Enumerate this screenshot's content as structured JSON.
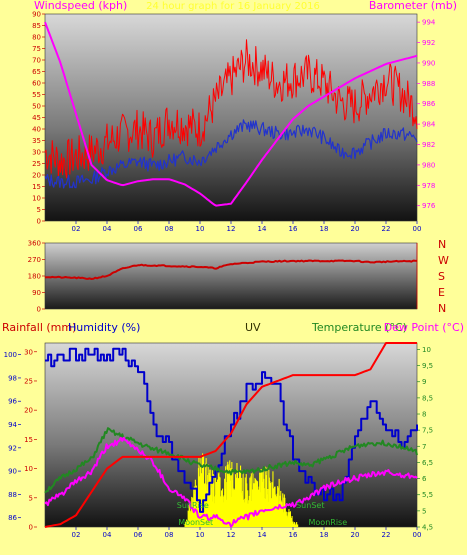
{
  "header": {
    "left_title": "Windspeed (kph)",
    "center_title": "24 hour graph for 16 January 2016",
    "right_title": "Barometer (mb)"
  },
  "direction_letters": [
    "N",
    "W",
    "S",
    "E",
    "N"
  ],
  "lower_headers": {
    "rainfall": "Rainfall (mm)",
    "humidity": "Humidity (%)",
    "uv": "UV",
    "temperature": "Temperature (°C)",
    "dewpoint": "Dew Point (°C)"
  },
  "astro_labels": {
    "sunrise": "SunRise",
    "moonset": "MoonSet",
    "sunset": "SunSet",
    "moonrise": "MoonRise"
  },
  "x_ticks": [
    "02",
    "04",
    "06",
    "08",
    "10",
    "12",
    "14",
    "16",
    "18",
    "20",
    "22",
    "00"
  ],
  "colors": {
    "background": "#ffff99",
    "label_red": "#ff00ff",
    "axis_red": "#cc0000",
    "wind_avg": "#2233cc",
    "wind_gust": "#ff0000",
    "barometer": "#ff00ff",
    "direction": "#cc0000",
    "humidity": "#0000cc",
    "temperature": "#228822",
    "dewpoint": "#ff00ff",
    "rain": "#ff0000",
    "uv": "#ffff00"
  },
  "chart_data": [
    {
      "type": "line",
      "name": "wind_and_barometer",
      "x": [
        0,
        1,
        2,
        3,
        4,
        5,
        6,
        7,
        8,
        9,
        10,
        11,
        12,
        13,
        14,
        15,
        16,
        17,
        18,
        19,
        20,
        21,
        22,
        23,
        24
      ],
      "xlim": [
        0,
        24
      ],
      "y_left": {
        "label": "Windspeed (kph)",
        "ticks": [
          0,
          5,
          10,
          15,
          20,
          25,
          30,
          35,
          40,
          45,
          50,
          55,
          60,
          65,
          70,
          75,
          80,
          85,
          90
        ],
        "ylim": [
          0,
          90
        ]
      },
      "y_right": {
        "label": "Barometer (mb)",
        "ticks": [
          976,
          978,
          980,
          982,
          984,
          986,
          988,
          990,
          992,
          994
        ],
        "ylim": [
          974.5,
          994.8
        ]
      },
      "series": [
        {
          "key": "gust",
          "values": [
            30,
            26,
            28,
            30,
            34,
            38,
            40,
            36,
            44,
            42,
            40,
            52,
            62,
            70,
            66,
            60,
            62,
            64,
            60,
            52,
            50,
            56,
            62,
            56,
            48
          ],
          "axis": "left"
        },
        {
          "key": "avg",
          "values": [
            18,
            17,
            17,
            18,
            22,
            24,
            26,
            24,
            26,
            28,
            26,
            32,
            38,
            42,
            40,
            38,
            38,
            40,
            36,
            30,
            30,
            34,
            38,
            38,
            36
          ],
          "axis": "left"
        },
        {
          "key": "baro",
          "values": [
            994,
            990,
            985,
            980,
            978.5,
            978,
            978.4,
            978.6,
            978.6,
            978.1,
            977.2,
            976,
            976.2,
            978.3,
            980.5,
            982.5,
            984.5,
            985.8,
            986.7,
            987.6,
            988.5,
            989.2,
            989.9,
            990.3,
            990.7
          ],
          "axis": "right"
        }
      ]
    },
    {
      "type": "line",
      "name": "wind_direction",
      "x": [
        0,
        2,
        3,
        4,
        5,
        6,
        8,
        10,
        11,
        12,
        14,
        16,
        18,
        20,
        21,
        22,
        24
      ],
      "xlim": [
        0,
        24
      ],
      "y": {
        "ticks": [
          0,
          90,
          180,
          270,
          360
        ],
        "ylim": [
          0,
          360
        ]
      },
      "series": [
        {
          "key": "direction",
          "values": [
            175,
            170,
            165,
            180,
            220,
            240,
            235,
            230,
            222,
            245,
            258,
            262,
            262,
            262,
            255,
            258,
            262
          ]
        }
      ]
    },
    {
      "type": "line",
      "name": "rain_humidity_uv_temperature",
      "x": [
        0,
        1,
        2,
        3,
        4,
        5,
        6,
        7,
        8,
        9,
        10,
        11,
        12,
        13,
        14,
        15,
        16,
        17,
        18,
        19,
        20,
        21,
        22,
        23,
        24
      ],
      "xlim": [
        0,
        24
      ],
      "y_rain": {
        "label": "Rainfall (mm)",
        "ticks": [
          0,
          5,
          10,
          15,
          20,
          25,
          30
        ],
        "ylim": [
          0,
          31.5
        ]
      },
      "y_humidity": {
        "label": "Humidity (%)",
        "ticks": [
          86,
          88,
          90,
          92,
          94,
          96,
          98,
          100
        ],
        "ylim": [
          85.2,
          101
        ]
      },
      "y_temp": {
        "label": "Temperature (°C)",
        "ticks": [
          4.5,
          5,
          5.5,
          6,
          6.5,
          7,
          7.5,
          8,
          8.5,
          9,
          9.5,
          10
        ],
        "ylim": [
          4.5,
          10.2
        ]
      },
      "series": [
        {
          "key": "rain",
          "values": [
            0,
            0.5,
            2,
            6,
            10,
            12,
            12,
            12,
            12,
            12,
            12,
            13,
            16,
            21,
            24,
            25,
            26,
            26,
            26,
            26,
            26,
            27,
            31.5,
            31.5,
            31.5
          ],
          "axis": "rain"
        },
        {
          "key": "humidity",
          "values": [
            99,
            100,
            100,
            100,
            100,
            100,
            99,
            94,
            92,
            89,
            87,
            90,
            94,
            97,
            98,
            97,
            91,
            89,
            88,
            88,
            93,
            96,
            94,
            92,
            94
          ],
          "axis": "humidity"
        },
        {
          "key": "temperature",
          "values": [
            5.6,
            6.0,
            6.3,
            6.6,
            7.5,
            7.3,
            7.1,
            6.9,
            6.8,
            6.6,
            6.4,
            6.3,
            6.2,
            6.2,
            6.3,
            6.4,
            6.5,
            6.4,
            6.6,
            6.8,
            7.0,
            7.1,
            7.1,
            7.0,
            6.8
          ],
          "axis": "temp"
        },
        {
          "key": "dewpoint",
          "values": [
            5.2,
            5.5,
            5.9,
            6.2,
            7.0,
            7.2,
            6.9,
            6.5,
            5.7,
            5.4,
            4.8,
            4.8,
            4.6,
            4.8,
            5.0,
            5.1,
            5.2,
            5.4,
            5.7,
            5.9,
            6.0,
            6.1,
            6.2,
            6.1,
            6.1
          ],
          "axis": "temp"
        },
        {
          "key": "uv",
          "values": [
            0,
            0,
            0,
            0,
            0,
            0,
            0,
            0,
            0,
            0.2,
            3.5,
            2.5,
            3.2,
            2.6,
            2.8,
            2.4,
            0.3,
            0,
            0,
            0,
            0,
            0,
            0,
            0,
            0
          ],
          "axis": "uv"
        }
      ]
    }
  ]
}
